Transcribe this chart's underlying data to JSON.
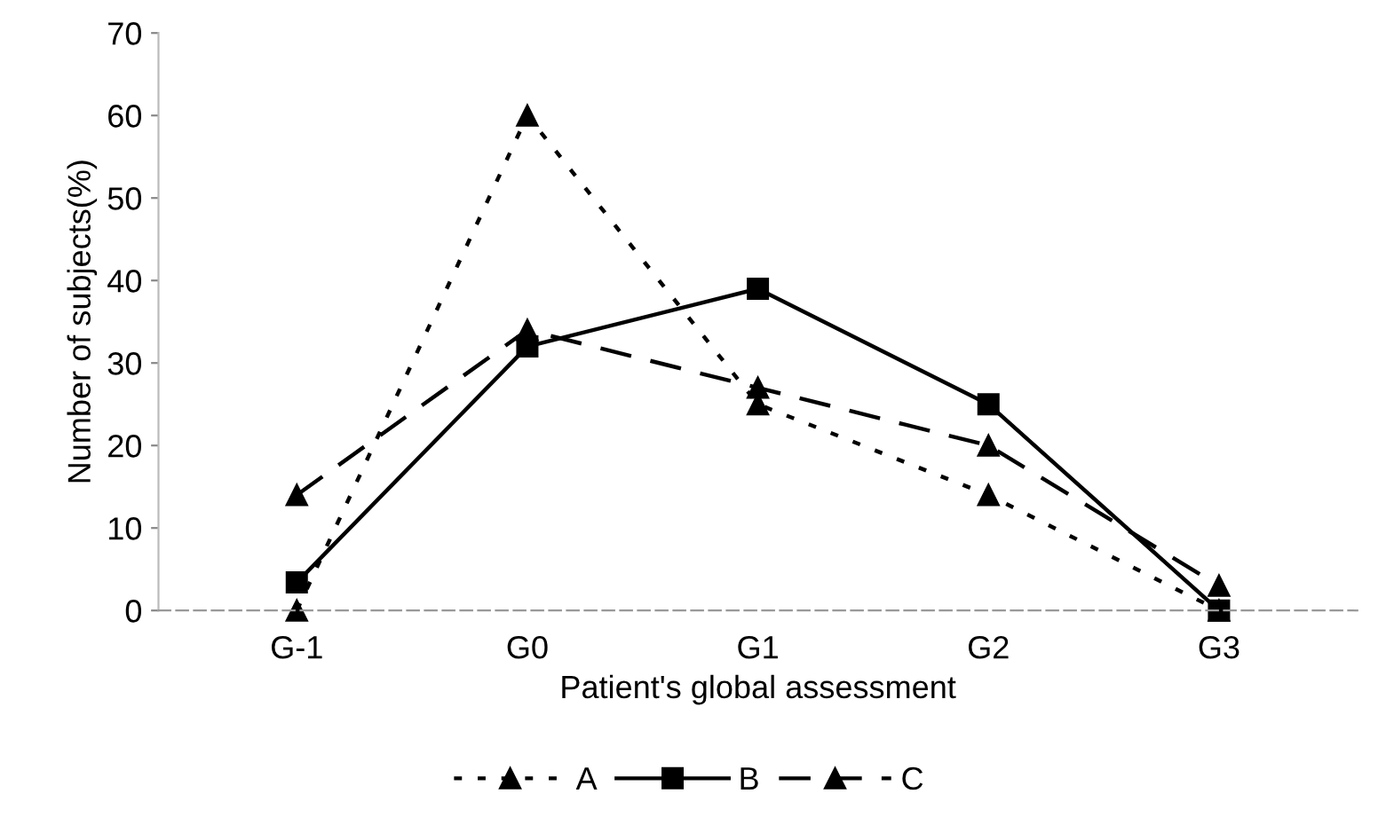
{
  "chart_data": {
    "type": "line",
    "xlabel": "Patient's global assessment",
    "ylabel": "Number of subjects(%)",
    "categories": [
      "G-1",
      "G0",
      "G1",
      "G2",
      "G3"
    ],
    "series": [
      {
        "name": "A",
        "color": "#000000",
        "marker": "triangle",
        "line_style": "dotted",
        "values": [
          0,
          60,
          25,
          14,
          0
        ]
      },
      {
        "name": "B",
        "color": "#000000",
        "marker": "square",
        "line_style": "solid",
        "values": [
          3.4,
          32,
          39,
          25,
          0
        ]
      },
      {
        "name": "C",
        "color": "#000000",
        "marker": "triangle",
        "line_style": "dashed",
        "values": [
          14,
          34,
          27,
          20,
          3
        ]
      }
    ],
    "ylim": [
      0,
      70
    ],
    "yticks": [
      0,
      10,
      20,
      30,
      40,
      50,
      60,
      70
    ],
    "grid": false,
    "legend": "bottom"
  }
}
